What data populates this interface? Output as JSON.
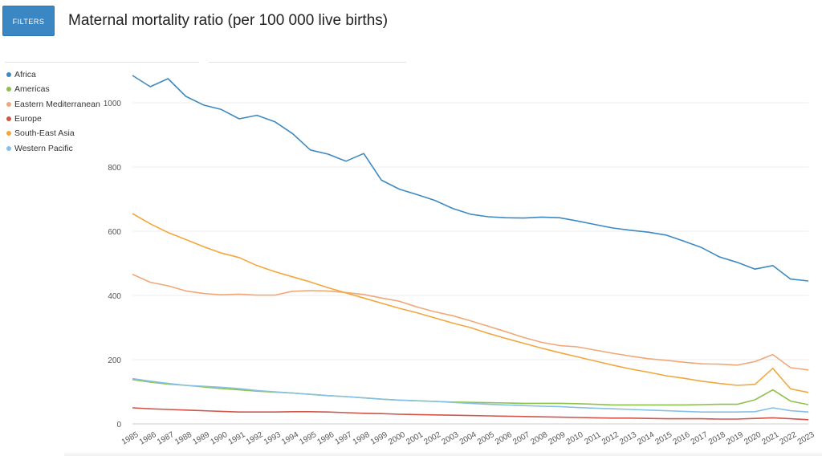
{
  "toolbar": {
    "filters_label": "FILTERS"
  },
  "page": {
    "title": "Maternal mortality ratio (per 100 000 live births)"
  },
  "chart_data": {
    "type": "line",
    "title": "Maternal mortality ratio (per 100 000 live births)",
    "xlabel": "",
    "ylabel": "",
    "ylim": [
      0,
      1100
    ],
    "yticks": [
      0,
      200,
      400,
      600,
      800,
      1000
    ],
    "grid": true,
    "legend_position": "top-left",
    "x": [
      1985,
      1986,
      1987,
      1988,
      1989,
      1990,
      1991,
      1992,
      1993,
      1994,
      1995,
      1996,
      1997,
      1998,
      1999,
      2000,
      2001,
      2002,
      2003,
      2004,
      2005,
      2006,
      2007,
      2008,
      2009,
      2010,
      2011,
      2012,
      2013,
      2014,
      2015,
      2016,
      2017,
      2018,
      2019,
      2020,
      2021,
      2022,
      2023
    ],
    "series": [
      {
        "name": "Africa",
        "color": "#3d8ac1",
        "values": [
          1085,
          1050,
          1075,
          1020,
          993,
          979,
          950,
          961,
          941,
          904,
          853,
          840,
          818,
          842,
          759,
          731,
          714,
          696,
          671,
          653,
          645,
          642,
          641,
          644,
          642,
          632,
          621,
          610,
          603,
          597,
          588,
          569,
          549,
          520,
          503,
          482,
          493,
          451,
          445
        ]
      },
      {
        "name": "Americas",
        "color": "#8bc34a",
        "values": [
          138,
          130,
          124,
          120,
          115,
          110,
          106,
          102,
          99,
          96,
          92,
          88,
          85,
          81,
          77,
          74,
          72,
          70,
          68,
          67,
          66,
          65,
          64,
          64,
          64,
          63,
          61,
          59,
          59,
          59,
          59,
          59,
          60,
          61,
          61,
          75,
          106,
          71,
          60
        ]
      },
      {
        "name": "Eastern Mediterranean",
        "color": "#f0a878",
        "values": [
          466,
          441,
          430,
          414,
          406,
          402,
          404,
          401,
          401,
          413,
          415,
          414,
          409,
          403,
          392,
          382,
          364,
          349,
          337,
          321,
          304,
          287,
          269,
          254,
          244,
          240,
          230,
          220,
          211,
          203,
          198,
          192,
          187,
          186,
          183,
          194,
          216,
          175,
          168
        ]
      },
      {
        "name": "Europe",
        "color": "#d0554b",
        "values": [
          50,
          47,
          45,
          43,
          41,
          39,
          37,
          37,
          37,
          38,
          38,
          37,
          35,
          33,
          32,
          30,
          29,
          28,
          27,
          26,
          25,
          24,
          23,
          22,
          21,
          20,
          19,
          18,
          18,
          17,
          16,
          16,
          16,
          15,
          15,
          17,
          19,
          16,
          13
        ]
      },
      {
        "name": "South-East Asia",
        "color": "#f2a73d",
        "values": [
          655,
          623,
          596,
          574,
          552,
          532,
          518,
          493,
          474,
          458,
          442,
          424,
          408,
          392,
          376,
          360,
          346,
          330,
          314,
          300,
          282,
          266,
          251,
          236,
          222,
          209,
          196,
          183,
          171,
          161,
          150,
          142,
          133,
          126,
          120,
          123,
          173,
          109,
          98
        ]
      },
      {
        "name": "Western Pacific",
        "color": "#86c0e6",
        "values": [
          141,
          133,
          126,
          120,
          117,
          114,
          110,
          104,
          100,
          96,
          92,
          88,
          85,
          81,
          77,
          74,
          72,
          70,
          67,
          64,
          61,
          59,
          57,
          55,
          54,
          51,
          49,
          47,
          45,
          43,
          41,
          39,
          37,
          37,
          37,
          38,
          50,
          41,
          37
        ]
      }
    ]
  }
}
